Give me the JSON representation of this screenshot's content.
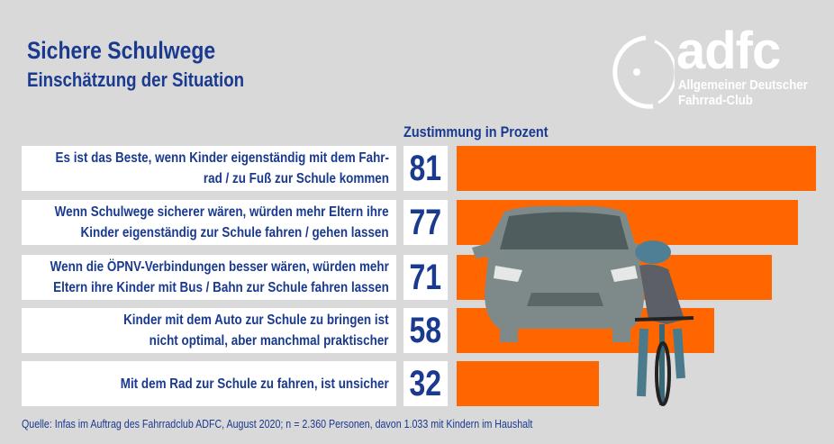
{
  "title": "Sichere Schulwege",
  "subtitle": "Einschätzung der Situation",
  "logo": {
    "word": "adfc",
    "line1": "Allgemeiner Deutscher",
    "line2": "Fahrrad-Club"
  },
  "colors": {
    "bar": "#ff6600",
    "text": "#1a3a8f",
    "background": "#d9d9d9"
  },
  "chart_data": {
    "type": "bar",
    "orientation": "horizontal",
    "xlabel": "Zustimmung in Prozent",
    "xlim": [
      0,
      81
    ],
    "categories": [
      [
        "Es ist das Beste, wenn Kinder eigenständig mit dem Fahr-",
        "rad / zu Fuß zur Schule kommen"
      ],
      [
        "Wenn Schulwege sicherer wären, würden mehr Eltern ihre",
        "Kinder eigenständig zur Schule fahren / gehen lassen"
      ],
      [
        "Wenn die ÖPNV-Verbindungen besser wären, würden mehr",
        "Eltern ihre Kinder mit Bus / Bahn zur Schule fahren lassen"
      ],
      [
        "Kinder mit dem Auto zur Schule zu bringen ist",
        "nicht optimal, aber manchmal praktischer"
      ],
      [
        "Mit dem Rad zur Schule zu fahren, ist unsicher"
      ]
    ],
    "values": [
      81,
      77,
      71,
      58,
      32
    ]
  },
  "source": "Quelle: Infas im Auftrag des Fahrradclub ADFC, August 2020; n = 2.360 Personen, davon 1.033 mit Kindern im Haushalt"
}
